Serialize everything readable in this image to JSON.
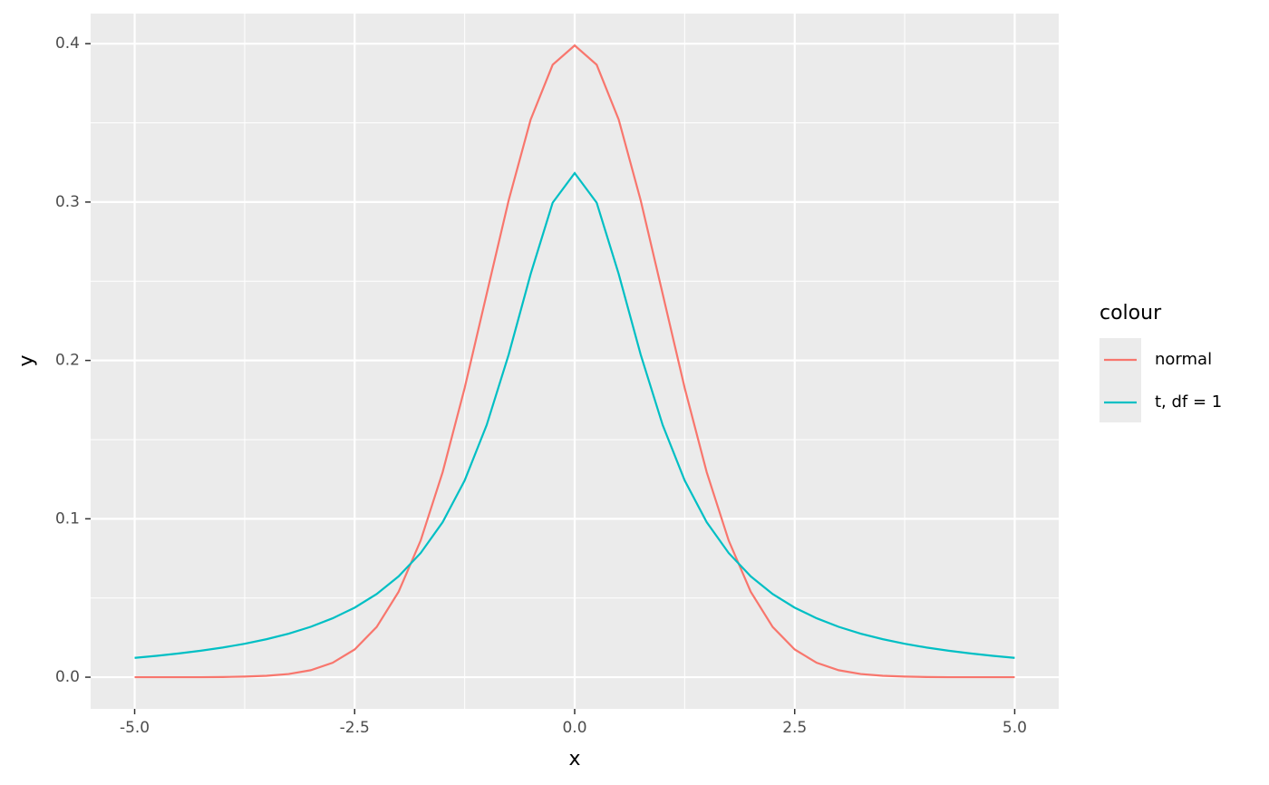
{
  "chart_data": {
    "type": "line",
    "xlabel": "x",
    "ylabel": "y",
    "x": [
      -5,
      -4.75,
      -4.5,
      -4.25,
      -4,
      -3.75,
      -3.5,
      -3.25,
      -3,
      -2.75,
      -2.5,
      -2.25,
      -2,
      -1.75,
      -1.5,
      -1.25,
      -1,
      -0.75,
      -0.5,
      -0.25,
      0,
      0.25,
      0.5,
      0.75,
      1,
      1.25,
      1.5,
      1.75,
      2,
      2.25,
      2.5,
      2.75,
      3,
      3.25,
      3.5,
      3.75,
      4,
      4.25,
      4.5,
      4.75,
      5
    ],
    "series": [
      {
        "name": "normal",
        "color": "#f8766d",
        "values": [
          0,
          0,
          0,
          0,
          0.0001,
          0.0004,
          0.0009,
          0.002,
          0.0044,
          0.0091,
          0.0175,
          0.0317,
          0.054,
          0.0863,
          0.1295,
          0.1826,
          0.242,
          0.3011,
          0.3521,
          0.3867,
          0.3989,
          0.3867,
          0.3521,
          0.3011,
          0.242,
          0.1826,
          0.1295,
          0.0863,
          0.054,
          0.0317,
          0.0175,
          0.0091,
          0.0044,
          0.002,
          0.0009,
          0.0004,
          0.0001,
          0,
          0,
          0,
          0
        ]
      },
      {
        "name": "t, df = 1",
        "color": "#00bfc4",
        "values": [
          0.0122,
          0.0135,
          0.015,
          0.0167,
          0.0187,
          0.0211,
          0.024,
          0.0275,
          0.0318,
          0.0372,
          0.0439,
          0.0525,
          0.0637,
          0.0784,
          0.0979,
          0.1242,
          0.1592,
          0.2037,
          0.2546,
          0.2996,
          0.3183,
          0.2996,
          0.2546,
          0.2037,
          0.1592,
          0.1242,
          0.0979,
          0.0784,
          0.0637,
          0.0525,
          0.0439,
          0.0372,
          0.0318,
          0.0275,
          0.024,
          0.0211,
          0.0187,
          0.0167,
          0.015,
          0.0135,
          0.0122
        ]
      }
    ],
    "xlim": [
      -5.5,
      5.5
    ],
    "ylim": [
      -0.02,
      0.419
    ],
    "xticks": [
      {
        "value": -5,
        "label": "-5.0"
      },
      {
        "value": -2.5,
        "label": "-2.5"
      },
      {
        "value": 0,
        "label": "0.0"
      },
      2.5,
      {
        "value": 5,
        "label": "5.0"
      }
    ],
    "yticks": [
      {
        "value": 0,
        "label": "0.0"
      },
      0.1,
      0.2,
      0.3,
      0.4
    ],
    "x_minor_ticks": [
      -3.75,
      -1.25,
      1.25,
      3.75
    ],
    "y_minor_ticks": [
      0.05,
      0.15,
      0.25,
      0.35
    ],
    "grid": true,
    "legend_title": "colour",
    "legend_position": "right"
  }
}
